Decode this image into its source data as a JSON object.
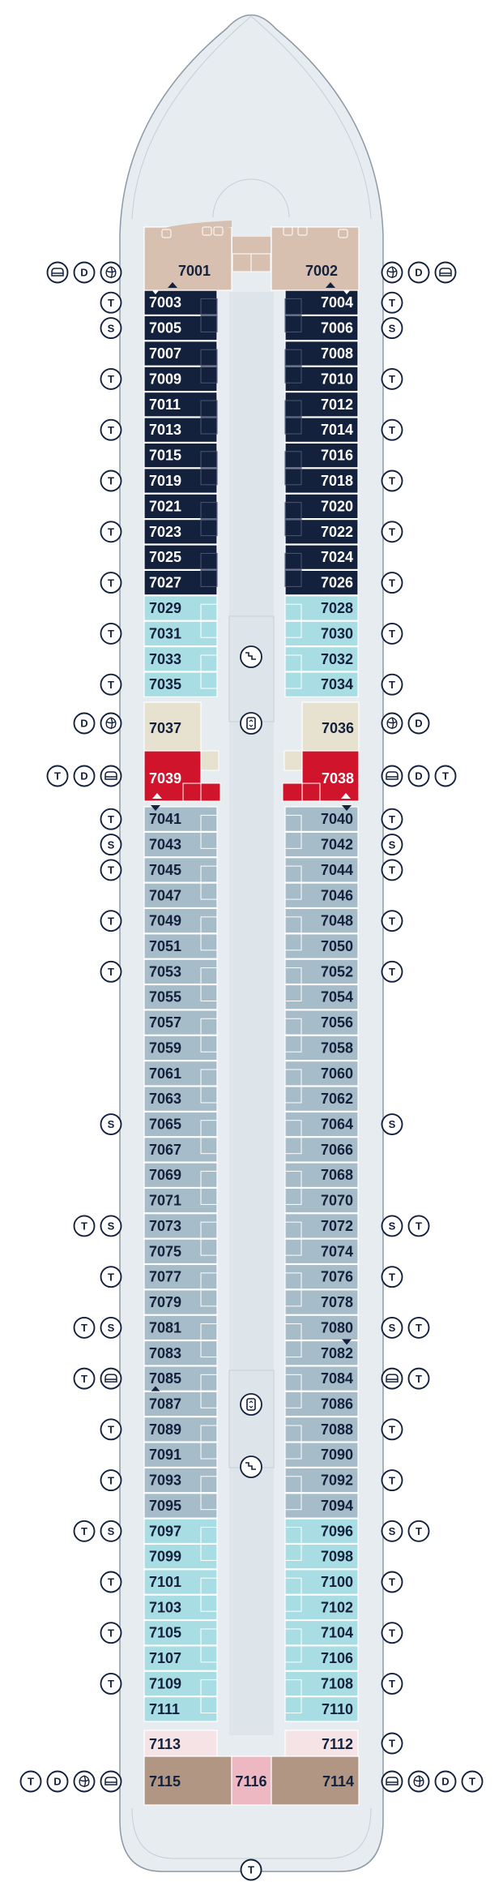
{
  "colors": {
    "navy": "#14213d",
    "aqua": "#a8dde4",
    "steel": "#a6bcc8",
    "beige": "#e7e1cf",
    "red": "#d0142c",
    "tan": "#d8c0b1",
    "brown": "#b29684",
    "pink": "#f6e3e6",
    "rose": "#eeb8c2",
    "hull": "#e6ecef",
    "outline": "#8d99a6",
    "icon": "#14213d"
  },
  "cabins": {
    "port": [
      {
        "num": "7003",
        "row": 0,
        "style": "navy",
        "arrow": "down"
      },
      {
        "num": "7005",
        "row": 1,
        "style": "navy"
      },
      {
        "num": "7007",
        "row": 2,
        "style": "navy"
      },
      {
        "num": "7009",
        "row": 3,
        "style": "navy"
      },
      {
        "num": "7011",
        "row": 4,
        "style": "navy"
      },
      {
        "num": "7013",
        "row": 5,
        "style": "navy"
      },
      {
        "num": "7015",
        "row": 6,
        "style": "navy"
      },
      {
        "num": "7019",
        "row": 7,
        "style": "navy"
      },
      {
        "num": "7021",
        "row": 8,
        "style": "navy"
      },
      {
        "num": "7023",
        "row": 9,
        "style": "navy"
      },
      {
        "num": "7025",
        "row": 10,
        "style": "navy"
      },
      {
        "num": "7027",
        "row": 11,
        "style": "navy"
      },
      {
        "num": "7029",
        "row": 12,
        "style": "aqua"
      },
      {
        "num": "7031",
        "row": 13,
        "style": "aqua"
      },
      {
        "num": "7033",
        "row": 14,
        "style": "aqua"
      },
      {
        "num": "7035",
        "row": 15,
        "style": "aqua"
      },
      {
        "num": "7041",
        "row": 20,
        "style": "steel",
        "arrow": "down"
      },
      {
        "num": "7043",
        "row": 21,
        "style": "steel"
      },
      {
        "num": "7045",
        "row": 22,
        "style": "steel"
      },
      {
        "num": "7047",
        "row": 23,
        "style": "steel"
      },
      {
        "num": "7049",
        "row": 24,
        "style": "steel"
      },
      {
        "num": "7051",
        "row": 25,
        "style": "steel"
      },
      {
        "num": "7053",
        "row": 26,
        "style": "steel"
      },
      {
        "num": "7055",
        "row": 27,
        "style": "steel"
      },
      {
        "num": "7057",
        "row": 28,
        "style": "steel"
      },
      {
        "num": "7059",
        "row": 29,
        "style": "steel"
      },
      {
        "num": "7061",
        "row": 30,
        "style": "steel"
      },
      {
        "num": "7063",
        "row": 31,
        "style": "steel"
      },
      {
        "num": "7065",
        "row": 32,
        "style": "steel"
      },
      {
        "num": "7067",
        "row": 33,
        "style": "steel"
      },
      {
        "num": "7069",
        "row": 34,
        "style": "steel"
      },
      {
        "num": "7071",
        "row": 35,
        "style": "steel"
      },
      {
        "num": "7073",
        "row": 36,
        "style": "steel"
      },
      {
        "num": "7075",
        "row": 37,
        "style": "steel"
      },
      {
        "num": "7077",
        "row": 38,
        "style": "steel"
      },
      {
        "num": "7079",
        "row": 39,
        "style": "steel"
      },
      {
        "num": "7081",
        "row": 40,
        "style": "steel"
      },
      {
        "num": "7083",
        "row": 41,
        "style": "steel"
      },
      {
        "num": "7085",
        "row": 42,
        "style": "steel",
        "arrow": "up"
      },
      {
        "num": "7087",
        "row": 43,
        "style": "steel"
      },
      {
        "num": "7089",
        "row": 44,
        "style": "steel"
      },
      {
        "num": "7091",
        "row": 45,
        "style": "steel"
      },
      {
        "num": "7093",
        "row": 46,
        "style": "steel"
      },
      {
        "num": "7095",
        "row": 47,
        "style": "steel"
      },
      {
        "num": "7097",
        "row": 48,
        "style": "aqua"
      },
      {
        "num": "7099",
        "row": 49,
        "style": "aqua"
      },
      {
        "num": "7101",
        "row": 50,
        "style": "aqua"
      },
      {
        "num": "7103",
        "row": 51,
        "style": "aqua"
      },
      {
        "num": "7105",
        "row": 52,
        "style": "aqua"
      },
      {
        "num": "7107",
        "row": 53,
        "style": "aqua"
      },
      {
        "num": "7109",
        "row": 54,
        "style": "aqua"
      },
      {
        "num": "7111",
        "row": 55,
        "style": "aqua"
      }
    ],
    "starboard": [
      {
        "num": "7004",
        "row": 0,
        "style": "navy",
        "arrow": "down"
      },
      {
        "num": "7006",
        "row": 1,
        "style": "navy"
      },
      {
        "num": "7008",
        "row": 2,
        "style": "navy"
      },
      {
        "num": "7010",
        "row": 3,
        "style": "navy"
      },
      {
        "num": "7012",
        "row": 4,
        "style": "navy"
      },
      {
        "num": "7014",
        "row": 5,
        "style": "navy"
      },
      {
        "num": "7016",
        "row": 6,
        "style": "navy"
      },
      {
        "num": "7018",
        "row": 7,
        "style": "navy"
      },
      {
        "num": "7020",
        "row": 8,
        "style": "navy"
      },
      {
        "num": "7022",
        "row": 9,
        "style": "navy"
      },
      {
        "num": "7024",
        "row": 10,
        "style": "navy"
      },
      {
        "num": "7026",
        "row": 11,
        "style": "navy"
      },
      {
        "num": "7028",
        "row": 12,
        "style": "aqua"
      },
      {
        "num": "7030",
        "row": 13,
        "style": "aqua"
      },
      {
        "num": "7032",
        "row": 14,
        "style": "aqua"
      },
      {
        "num": "7034",
        "row": 15,
        "style": "aqua"
      },
      {
        "num": "7040",
        "row": 20,
        "style": "steel",
        "arrow": "down"
      },
      {
        "num": "7042",
        "row": 21,
        "style": "steel"
      },
      {
        "num": "7044",
        "row": 22,
        "style": "steel"
      },
      {
        "num": "7046",
        "row": 23,
        "style": "steel"
      },
      {
        "num": "7048",
        "row": 24,
        "style": "steel"
      },
      {
        "num": "7050",
        "row": 25,
        "style": "steel"
      },
      {
        "num": "7052",
        "row": 26,
        "style": "steel"
      },
      {
        "num": "7054",
        "row": 27,
        "style": "steel"
      },
      {
        "num": "7056",
        "row": 28,
        "style": "steel"
      },
      {
        "num": "7058",
        "row": 29,
        "style": "steel"
      },
      {
        "num": "7060",
        "row": 30,
        "style": "steel"
      },
      {
        "num": "7062",
        "row": 31,
        "style": "steel"
      },
      {
        "num": "7064",
        "row": 32,
        "style": "steel"
      },
      {
        "num": "7066",
        "row": 33,
        "style": "steel"
      },
      {
        "num": "7068",
        "row": 34,
        "style": "steel"
      },
      {
        "num": "7070",
        "row": 35,
        "style": "steel"
      },
      {
        "num": "7072",
        "row": 36,
        "style": "steel"
      },
      {
        "num": "7074",
        "row": 37,
        "style": "steel"
      },
      {
        "num": "7076",
        "row": 38,
        "style": "steel"
      },
      {
        "num": "7078",
        "row": 39,
        "style": "steel"
      },
      {
        "num": "7080",
        "row": 40,
        "style": "steel"
      },
      {
        "num": "7082",
        "row": 41,
        "style": "steel",
        "arrow": "down"
      },
      {
        "num": "7084",
        "row": 42,
        "style": "steel"
      },
      {
        "num": "7086",
        "row": 43,
        "style": "steel"
      },
      {
        "num": "7088",
        "row": 44,
        "style": "steel"
      },
      {
        "num": "7090",
        "row": 45,
        "style": "steel"
      },
      {
        "num": "7092",
        "row": 46,
        "style": "steel"
      },
      {
        "num": "7094",
        "row": 47,
        "style": "steel"
      },
      {
        "num": "7096",
        "row": 48,
        "style": "aqua"
      },
      {
        "num": "7098",
        "row": 49,
        "style": "aqua"
      },
      {
        "num": "7100",
        "row": 50,
        "style": "aqua"
      },
      {
        "num": "7102",
        "row": 51,
        "style": "aqua"
      },
      {
        "num": "7104",
        "row": 52,
        "style": "aqua"
      },
      {
        "num": "7106",
        "row": 53,
        "style": "aqua"
      },
      {
        "num": "7108",
        "row": 54,
        "style": "aqua"
      },
      {
        "num": "7110",
        "row": 55,
        "style": "aqua"
      }
    ],
    "special": {
      "c7001": "7001",
      "c7002": "7002",
      "c7037": "7037",
      "c7036": "7036",
      "c7039": "7039",
      "c7038": "7038",
      "c7113": "7113",
      "c7112": "7112",
      "c7115": "7115",
      "c7116": "7116",
      "c7114": "7114"
    }
  },
  "icons": {
    "left": [
      {
        "row": "r7001",
        "icons": [
          "sofa-icon",
          "D",
          "spa-icon"
        ]
      },
      {
        "row": 0,
        "icons": [
          "T"
        ]
      },
      {
        "row": 1,
        "icons": [
          "S"
        ]
      },
      {
        "row": 3,
        "icons": [
          "T"
        ]
      },
      {
        "row": 5,
        "icons": [
          "T"
        ]
      },
      {
        "row": 7,
        "icons": [
          "T"
        ]
      },
      {
        "row": 9,
        "icons": [
          "T"
        ]
      },
      {
        "row": 11,
        "icons": [
          "T"
        ]
      },
      {
        "row": 13,
        "icons": [
          "T"
        ]
      },
      {
        "row": 15,
        "icons": [
          "T"
        ]
      },
      {
        "row": "r7037",
        "icons": [
          "D",
          "spa-icon"
        ]
      },
      {
        "row": "r7039",
        "icons": [
          "T",
          "D",
          "sofa-icon"
        ]
      },
      {
        "row": 20,
        "icons": [
          "T"
        ]
      },
      {
        "row": 21,
        "icons": [
          "S"
        ]
      },
      {
        "row": 22,
        "icons": [
          "T"
        ]
      },
      {
        "row": 24,
        "icons": [
          "T"
        ]
      },
      {
        "row": 26,
        "icons": [
          "T"
        ]
      },
      {
        "row": 32,
        "icons": [
          "S"
        ]
      },
      {
        "row": 36,
        "icons": [
          "T",
          "S"
        ]
      },
      {
        "row": 38,
        "icons": [
          "T"
        ]
      },
      {
        "row": 40,
        "icons": [
          "T",
          "S"
        ]
      },
      {
        "row": 42,
        "icons": [
          "T",
          "sofa-icon"
        ]
      },
      {
        "row": 44,
        "icons": [
          "T"
        ]
      },
      {
        "row": 46,
        "icons": [
          "T"
        ]
      },
      {
        "row": 48,
        "icons": [
          "T",
          "S"
        ]
      },
      {
        "row": 50,
        "icons": [
          "T"
        ]
      },
      {
        "row": 52,
        "icons": [
          "T"
        ]
      },
      {
        "row": 54,
        "icons": [
          "T"
        ]
      },
      {
        "row": "r7115",
        "icons": [
          "T",
          "D",
          "spa-icon",
          "sofa-icon"
        ]
      }
    ],
    "right": [
      {
        "row": "r7001",
        "icons": [
          "spa-icon",
          "D",
          "sofa-icon"
        ]
      },
      {
        "row": 0,
        "icons": [
          "T"
        ]
      },
      {
        "row": 1,
        "icons": [
          "S"
        ]
      },
      {
        "row": 3,
        "icons": [
          "T"
        ]
      },
      {
        "row": 5,
        "icons": [
          "T"
        ]
      },
      {
        "row": 7,
        "icons": [
          "T"
        ]
      },
      {
        "row": 9,
        "icons": [
          "T"
        ]
      },
      {
        "row": 11,
        "icons": [
          "T"
        ]
      },
      {
        "row": 13,
        "icons": [
          "T"
        ]
      },
      {
        "row": 15,
        "icons": [
          "T"
        ]
      },
      {
        "row": "r7037",
        "icons": [
          "spa-icon",
          "D"
        ]
      },
      {
        "row": "r7039",
        "icons": [
          "sofa-icon",
          "D",
          "T"
        ]
      },
      {
        "row": 20,
        "icons": [
          "T"
        ]
      },
      {
        "row": 21,
        "icons": [
          "S"
        ]
      },
      {
        "row": 22,
        "icons": [
          "T"
        ]
      },
      {
        "row": 24,
        "icons": [
          "T"
        ]
      },
      {
        "row": 26,
        "icons": [
          "T"
        ]
      },
      {
        "row": 32,
        "icons": [
          "S"
        ]
      },
      {
        "row": 36,
        "icons": [
          "S",
          "T"
        ]
      },
      {
        "row": 38,
        "icons": [
          "T"
        ]
      },
      {
        "row": 40,
        "icons": [
          "S",
          "T"
        ]
      },
      {
        "row": 42,
        "icons": [
          "sofa-icon",
          "T"
        ]
      },
      {
        "row": 44,
        "icons": [
          "T"
        ]
      },
      {
        "row": 46,
        "icons": [
          "T"
        ]
      },
      {
        "row": 48,
        "icons": [
          "S",
          "T"
        ]
      },
      {
        "row": 50,
        "icons": [
          "T"
        ]
      },
      {
        "row": 52,
        "icons": [
          "T"
        ]
      },
      {
        "row": 54,
        "icons": [
          "T"
        ]
      },
      {
        "row": "r7113",
        "icons": [
          "T"
        ]
      },
      {
        "row": "r7115",
        "icons": [
          "sofa-icon",
          "spa-icon",
          "D",
          "T"
        ]
      }
    ],
    "bottom": [
      "T"
    ]
  }
}
